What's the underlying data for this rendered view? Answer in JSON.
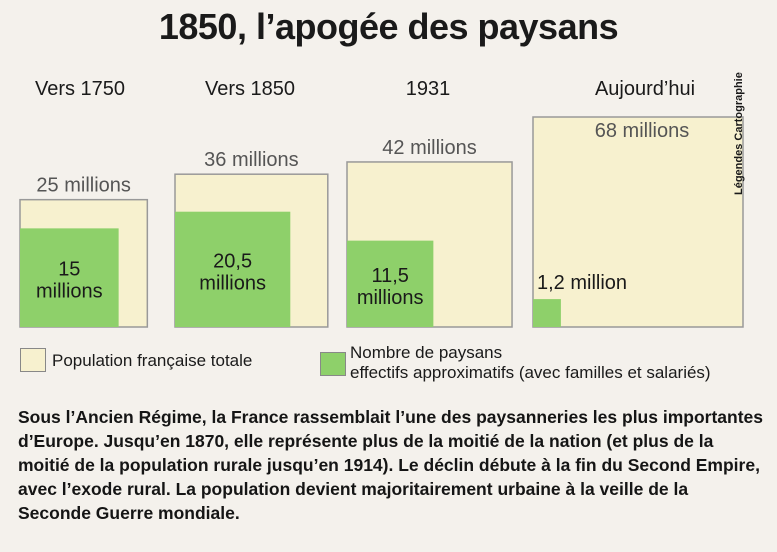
{
  "title": "1850, l’apogée des paysans",
  "chart_data": {
    "type": "area-squares",
    "categories": [
      "Vers 1750",
      "Vers 1850",
      "1931",
      "Aujourd’hui"
    ],
    "series": [
      {
        "name": "Population française totale",
        "values": [
          25,
          36,
          42,
          68
        ],
        "labels": [
          "25 millions",
          "36 millions",
          "42 millions",
          "68 millions"
        ]
      },
      {
        "name": "Nombre de paysans effectifs approximatifs (avec familles et salariés)",
        "values": [
          15,
          20.5,
          11.5,
          1.2
        ],
        "labels": [
          "15 millions",
          "20,5 millions",
          "11,5 millions",
          "1,2 million"
        ]
      }
    ],
    "unit": "millions"
  },
  "legend": {
    "total": "Population française totale",
    "paysans_line1": "Nombre de paysans",
    "paysans_line2": "effectifs approximatifs (avec familles et salariés)"
  },
  "credit": "Légendes Cartographie",
  "caption": "Sous l’Ancien Régime, la France rassemblait l’une des paysanneries les plus importantes d’Europe. Jusqu’en 1870, elle représente plus de la moitié de la nation (et plus de la moitié de la population rurale jusqu’en 1914). Le déclin débute à la fin du Second Empire, avec l’exode rural. La population devient majoritairement urbaine à la veille de la Seconde Guerre mondiale.",
  "colors": {
    "total_fill": "#f7f1cf",
    "paysans_fill": "#8ed06a",
    "border": "#999999"
  }
}
